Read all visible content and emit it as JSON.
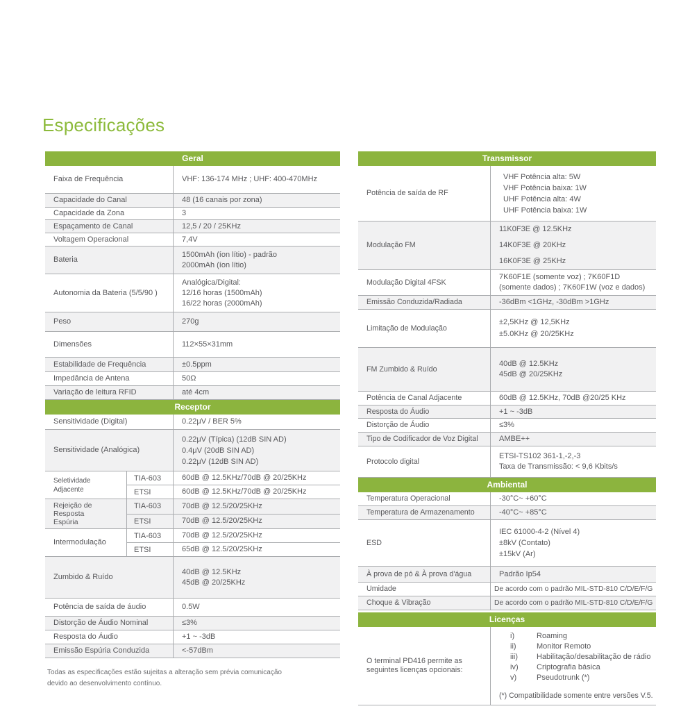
{
  "page": {
    "title": "Especificações",
    "footnote": "Todas as especificações estão sujeitas a alteração sem prévia comunicação\ndevido ao desenvolvimento contínuo."
  },
  "colors": {
    "accent_green": "#8CB43E",
    "title_green": "#8CBA3B",
    "row_shade": "#F1F1F2",
    "text": "#58585B",
    "border": "#A9ABAE"
  },
  "columns": [
    {
      "container": "col-left",
      "tables": [
        {
          "id": "geral",
          "header": "Geral",
          "rows": [
            {
              "label": "Faixa de Frequência",
              "value": "VHF: 136-174 MHz ; UHF:  400-470MHz",
              "shaded": false
            },
            {
              "label": "Capacidade do Canal",
              "value": "48 (16 canais por zona)",
              "shaded": true
            },
            {
              "label": "Capacidade da Zona",
              "value": "3",
              "shaded": false
            },
            {
              "label": "Espaçamento de Canal",
              "value": "12,5 / 20 / 25KHz",
              "shaded": true
            },
            {
              "label": "Voltagem Operacional",
              "value": "7,4V",
              "shaded": false
            },
            {
              "label": "Bateria",
              "value": [
                "1500mAh (íon lítio) - padrão",
                "2000mAh (íon lítio)"
              ],
              "shaded": true
            },
            {
              "label": "Autonomia da Bateria (5/5/90 )",
              "value": [
                "Analógica/Digital:",
                "12/16 horas (1500mAh)",
                "16/22 horas (2000mAh)"
              ],
              "shaded": false
            },
            {
              "label": "Peso",
              "value": "270g",
              "shaded": true
            },
            {
              "label": "Dimensões",
              "value": "112×55×31mm",
              "shaded": false
            },
            {
              "label": "Estabilidade de Frequência",
              "value": "±0.5ppm",
              "shaded": true
            },
            {
              "label": "Impedância de Antena",
              "value": "50Ω",
              "shaded": false
            },
            {
              "label": "Variação de leitura RFID",
              "value": "até 4cm",
              "shaded": true
            }
          ]
        },
        {
          "id": "receptor",
          "header": "Receptor",
          "rows": [
            {
              "label": "Sensitividade (Digital)",
              "value": "0.22μV / BER 5%",
              "shaded": false
            },
            {
              "label": "Sensitividade (Analógica)",
              "value": [
                "0.22μV (Típica) (12dB SIN AD)",
                "0.4μV (20dB SIN AD)",
                "0.22μV (12dB SIN AD)"
              ],
              "shaded": true
            },
            {
              "label": "Seletividade Adjacente",
              "shaded": false,
              "subrows": [
                {
                  "std": "TIA-603",
                  "value": "60dB @ 12.5KHz/70dB @ 20/25KHz"
                },
                {
                  "std": "ETSI",
                  "value": "60dB @ 12.5KHz/70dB @ 20/25KHz"
                }
              ]
            },
            {
              "label": "Rejeição de\nResposta\nEspúria",
              "shaded": true,
              "subrows": [
                {
                  "std": "TIA-603",
                  "value": "70dB @ 12.5/20/25KHz"
                },
                {
                  "std": "ETSI",
                  "value": "70dB @ 12.5/20/25KHz"
                }
              ]
            },
            {
              "label": "Intermodulação",
              "shaded": false,
              "subrows": [
                {
                  "std": "TIA-603",
                  "value": "70dB @ 12.5/20/25KHz"
                },
                {
                  "std": "ETSI",
                  "value": "65dB @ 12.5/20/25KHz"
                }
              ]
            },
            {
              "label": "Zumbido & Ruído",
              "value": [
                "40dB @ 12.5KHz",
                "45dB @ 20/25KHz"
              ],
              "shaded": true
            },
            {
              "label": "Potência de saída de áudio",
              "value": "0.5W",
              "shaded": false
            },
            {
              "label": "Distorção de Áudio Nominal",
              "value": "≤3%",
              "shaded": true
            },
            {
              "label": "Resposta do Áudio",
              "value": "+1 ~ -3dB",
              "shaded": false
            },
            {
              "label": "Emissão Espúria Conduzida",
              "value": "<-57dBm",
              "shaded": true
            }
          ]
        }
      ]
    },
    {
      "container": "col-right",
      "tables": [
        {
          "id": "transmissor",
          "header": "Transmissor",
          "rows": [
            {
              "label": "Potência de saída de RF",
              "value": [
                "VHF Potência alta: 5W",
                "VHF Potência baixa: 1W",
                "UHF Potência alta: 4W",
                "UHF Potência baixa: 1W"
              ],
              "shaded": false
            },
            {
              "label": "Modulação FM",
              "value": [
                "11K0F3E @ 12.5KHz",
                "14K0F3E @ 20KHz",
                "16K0F3E @ 25KHz"
              ],
              "shaded": true
            },
            {
              "label": "Modulação Digital 4FSK",
              "value": "7K60F1E (somente voz) ; 7K60F1D (somente dados) ; 7K60F1W (voz e dados)",
              "shaded": false
            },
            {
              "label": "Emissão Conduzida/Radiada",
              "value": "-36dBm <1GHz, -30dBm >1GHz",
              "shaded": true
            },
            {
              "label": "Limitação de Modulação",
              "value": [
                "±2,5KHz @ 12,5KHz",
                "±5.0KHz @ 20/25KHz"
              ],
              "shaded": false
            },
            {
              "label": "FM Zumbido & Ruído",
              "value": [
                "40dB @ 12.5KHz",
                "45dB @ 20/25KHz"
              ],
              "shaded": true
            },
            {
              "label": "Potência de Canal Adjacente",
              "value": "60dB @ 12.5KHz, 70dB @20/25 KHz",
              "shaded": false
            },
            {
              "label": "Resposta do Áudio",
              "value": "+1 ~ -3dB",
              "shaded": true
            },
            {
              "label": "Distorção de Áudio",
              "value": "≤3%",
              "shaded": false
            },
            {
              "label": "Tipo de Codificador de Voz Digital",
              "value": "AMBE++",
              "shaded": true
            },
            {
              "label": "Protocolo digital",
              "value": [
                "ETSI-TS102 361-1,-2,-3",
                "Taxa de Transmissão: < 9,6 Kbits/s"
              ],
              "shaded": false
            }
          ]
        },
        {
          "id": "ambiental",
          "header": "Ambiental",
          "rows": [
            {
              "label": "Temperatura Operacional",
              "value": "-30°C~ +60°C",
              "shaded": false
            },
            {
              "label": "Temperatura de Armazenamento",
              "value": "-40°C~ +85°C",
              "shaded": true
            },
            {
              "label": "ESD",
              "value": [
                "IEC 61000-4-2 (Nível 4)",
                "±8kV (Contato)",
                "±15kV (Ar)"
              ],
              "shaded": false
            },
            {
              "label": "À prova de pó & À prova d'água",
              "value": "Padrão Ip54",
              "shaded": true
            },
            {
              "label": "Umidade",
              "value": "De acordo com o padrão MIL-STD-810 C/D/E/F/G",
              "shaded": false
            },
            {
              "label": "Choque & Vibração",
              "value": "De acordo com o padrão MIL-STD-810 C/D/E/F/G",
              "shaded": true
            }
          ]
        },
        {
          "id": "licencas",
          "header": "Licenças",
          "rows": [
            {
              "label": "O terminal PD416 permite as\nseguintes licenças opcionais:",
              "shaded": false,
              "items": [
                {
                  "num": "i)",
                  "text": "Roaming"
                },
                {
                  "num": "ii)",
                  "text": "Monitor Remoto"
                },
                {
                  "num": "iii)",
                  "text": "Habilitação/desabilitação de rádio"
                },
                {
                  "num": "iv)",
                  "text": "Criptografia básica"
                },
                {
                  "num": "v)",
                  "text": "Pseudotrunk (*)"
                }
              ],
              "footnote": "(*) Compatibilidade somente entre versões V.5."
            }
          ]
        }
      ]
    }
  ]
}
